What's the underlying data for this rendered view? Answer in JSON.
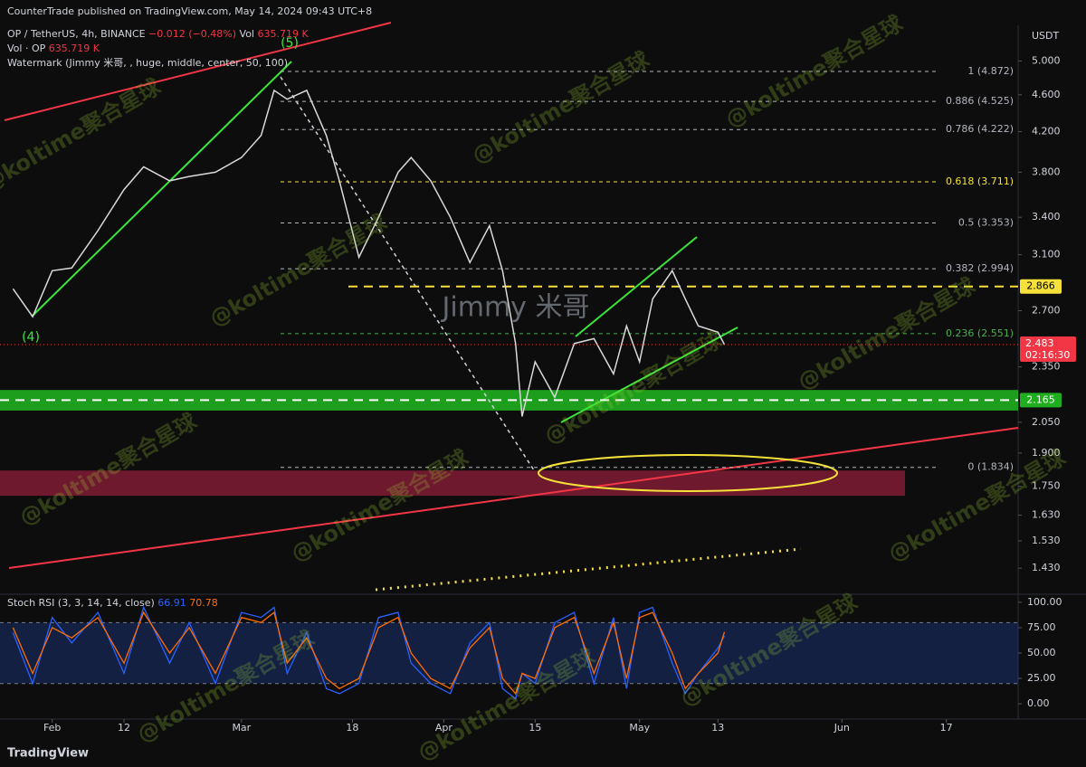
{
  "header": {
    "published": "CounterTrade published on TradingView.com, May 14, 2024 09:43 UTC+8",
    "footer": "TradingView",
    "watermark_overlay": "@koltime聚合星球"
  },
  "chart_data": [
    {
      "type": "line",
      "title": "OP / TetherUS, 4h, BINANCE",
      "change": "−0.012 (−0.48%)",
      "volume_label": "Vol · OP",
      "volume": "635.719 K",
      "vol_prefix": "Vol",
      "watermark_indicator": "Watermark (Jimmy 米哥, , huge, middle, center, 50, 100)",
      "watermark": "Jimmy 米哥",
      "currency": "USDT",
      "wave_labels": [
        "(5)",
        "(4)"
      ],
      "log_scale": true,
      "x": [
        "2024-01-26",
        "2024-01-29",
        "2024-02-01",
        "2024-02-04",
        "2024-02-08",
        "2024-02-12",
        "2024-02-15",
        "2024-02-19",
        "2024-02-22",
        "2024-02-26",
        "2024-03-01",
        "2024-03-04",
        "2024-03-06",
        "2024-03-08",
        "2024-03-11",
        "2024-03-14",
        "2024-03-16",
        "2024-03-19",
        "2024-03-22",
        "2024-03-25",
        "2024-03-27",
        "2024-03-30",
        "2024-04-02",
        "2024-04-05",
        "2024-04-08",
        "2024-04-10",
        "2024-04-12",
        "2024-04-13",
        "2024-04-15",
        "2024-04-18",
        "2024-04-21",
        "2024-04-24",
        "2024-04-27",
        "2024-04-29",
        "2024-05-01",
        "2024-05-03",
        "2024-05-06",
        "2024-05-08",
        "2024-05-10",
        "2024-05-13",
        "2024-05-14"
      ],
      "series": [
        {
          "color": "#d9d9d9",
          "values": [
            2.85,
            2.66,
            2.98,
            3.0,
            3.29,
            3.64,
            3.85,
            3.72,
            3.76,
            3.8,
            3.94,
            4.16,
            4.65,
            4.55,
            4.65,
            4.16,
            3.72,
            3.08,
            3.4,
            3.8,
            3.94,
            3.72,
            3.4,
            3.04,
            3.33,
            2.98,
            2.49,
            2.08,
            2.38,
            2.18,
            2.49,
            2.52,
            2.31,
            2.6,
            2.38,
            2.78,
            2.98,
            2.78,
            2.6,
            2.56,
            2.483
          ]
        }
      ],
      "xlim": [
        "2024-01-24",
        "2024-06-28"
      ],
      "xticks": [
        {
          "value": "2024-02-01",
          "label": "Feb"
        },
        {
          "value": "2024-02-12",
          "label": "12"
        },
        {
          "value": "2024-03-01",
          "label": "Mar"
        },
        {
          "value": "2024-03-18",
          "label": "18"
        },
        {
          "value": "2024-04-01",
          "label": "Apr"
        },
        {
          "value": "2024-04-15",
          "label": "15"
        },
        {
          "value": "2024-05-01",
          "label": "May"
        },
        {
          "value": "2024-05-13",
          "label": "13"
        },
        {
          "value": "2024-06-01",
          "label": "Jun"
        },
        {
          "value": "2024-06-17",
          "label": "17"
        }
      ],
      "ylim": [
        1.347,
        5.46
      ],
      "yticks": [
        {
          "value": 5,
          "label": "5.000"
        },
        {
          "value": 4.6,
          "label": "4.600"
        },
        {
          "value": 4.2,
          "label": "4.200"
        },
        {
          "value": 3.8,
          "label": "3.800"
        },
        {
          "value": 3.4,
          "label": "3.400"
        },
        {
          "value": 3.1,
          "label": "3.100"
        },
        {
          "value": 2.7,
          "label": "2.700"
        },
        {
          "value": 2.35,
          "label": "2.350"
        },
        {
          "value": 2.05,
          "label": "2.050"
        },
        {
          "value": 1.9,
          "label": "1.900"
        },
        {
          "value": 1.75,
          "label": "1.750"
        },
        {
          "value": 1.63,
          "label": "1.630"
        },
        {
          "value": 1.53,
          "label": "1.530"
        },
        {
          "value": 1.43,
          "label": "1.430"
        }
      ],
      "fib_levels": [
        {
          "value": 4.872,
          "label": "1 (4.872)",
          "color": "#b2b5be"
        },
        {
          "value": 4.525,
          "label": "0.886 (4.525)",
          "color": "#b2b5be"
        },
        {
          "value": 4.222,
          "label": "0.786 (4.222)",
          "color": "#b2b5be"
        },
        {
          "value": 3.711,
          "label": "0.618 (3.711)",
          "color": "#f5e13a"
        },
        {
          "value": 3.353,
          "label": "0.5 (3.353)",
          "color": "#b2b5be"
        },
        {
          "value": 2.994,
          "label": "0.382 (2.994)",
          "color": "#b2b5be"
        },
        {
          "value": 2.551,
          "label": "0.236 (2.551)",
          "color": "#4caf50"
        },
        {
          "value": 1.834,
          "label": "0 (1.834)",
          "color": "#b2b5be"
        }
      ],
      "levels": [
        {
          "value": 2.866,
          "color": "#f5e13a"
        },
        {
          "value": 2.165,
          "color": "#ffffff"
        }
      ],
      "zones": [
        {
          "range": [
            2.11,
            2.22
          ],
          "color": "#1fae1f"
        },
        {
          "range": [
            1.71,
            1.82
          ],
          "color": "#8f1d3a"
        }
      ],
      "last_price": {
        "value": 2.483,
        "countdown": "02:16:30",
        "color": "#f23645"
      }
    },
    {
      "type": "line",
      "title": "Stoch RSI (3, 3, 14, 14, close)",
      "x": [
        "2024-01-26",
        "2024-01-29",
        "2024-02-01",
        "2024-02-04",
        "2024-02-08",
        "2024-02-12",
        "2024-02-15",
        "2024-02-19",
        "2024-02-22",
        "2024-02-26",
        "2024-03-01",
        "2024-03-04",
        "2024-03-06",
        "2024-03-08",
        "2024-03-11",
        "2024-03-14",
        "2024-03-16",
        "2024-03-19",
        "2024-03-22",
        "2024-03-25",
        "2024-03-27",
        "2024-03-30",
        "2024-04-02",
        "2024-04-05",
        "2024-04-08",
        "2024-04-10",
        "2024-04-12",
        "2024-04-13",
        "2024-04-15",
        "2024-04-18",
        "2024-04-21",
        "2024-04-24",
        "2024-04-27",
        "2024-04-29",
        "2024-05-01",
        "2024-05-03",
        "2024-05-06",
        "2024-05-08",
        "2024-05-10",
        "2024-05-13",
        "2024-05-14"
      ],
      "series": [
        {
          "color": "#2962ff",
          "values": [
            70,
            20,
            85,
            60,
            90,
            30,
            95,
            40,
            80,
            20,
            90,
            85,
            95,
            30,
            70,
            15,
            10,
            20,
            85,
            90,
            40,
            20,
            10,
            60,
            80,
            15,
            5,
            30,
            20,
            80,
            90,
            20,
            85,
            15,
            90,
            95,
            40,
            10,
            30,
            55,
            66.91
          ]
        },
        {
          "color": "#ff6d00",
          "values": [
            75,
            30,
            75,
            65,
            85,
            40,
            90,
            50,
            75,
            30,
            85,
            80,
            90,
            40,
            65,
            25,
            15,
            25,
            75,
            85,
            50,
            25,
            15,
            55,
            75,
            25,
            10,
            30,
            25,
            75,
            85,
            30,
            80,
            25,
            85,
            90,
            50,
            15,
            30,
            50,
            70.78
          ]
        }
      ],
      "ylim": [
        -15,
        107
      ],
      "yticks": [
        {
          "value": 100,
          "label": "100.00"
        },
        {
          "value": 75,
          "label": "75.00"
        },
        {
          "value": 50,
          "label": "50.00"
        },
        {
          "value": 25,
          "label": "25.00"
        },
        {
          "value": 0,
          "label": "0.00"
        }
      ],
      "band": [
        20,
        80
      ]
    }
  ]
}
